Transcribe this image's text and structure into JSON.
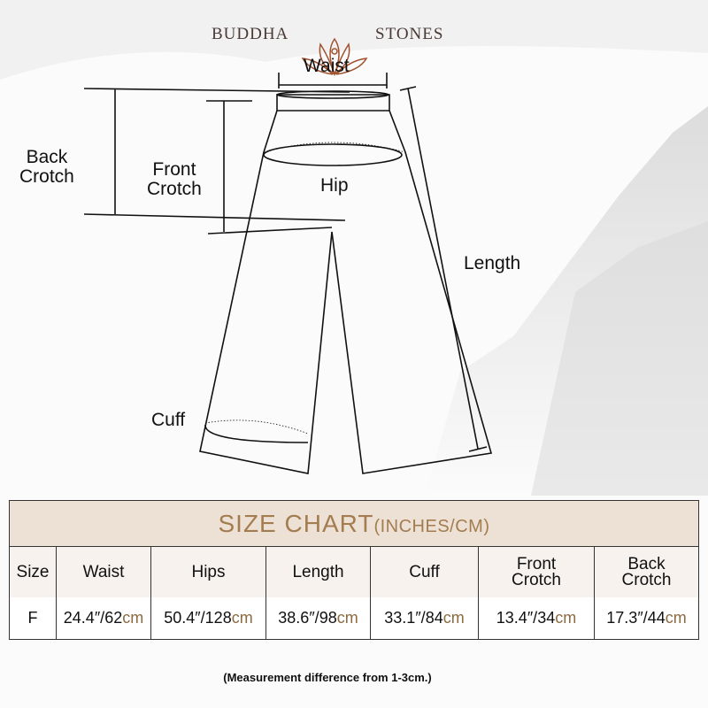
{
  "brand": {
    "left": "BUDDHA",
    "right": "STONES"
  },
  "diagram": {
    "waist": "Waist",
    "hip": "Hip",
    "back_crotch": [
      "Back",
      "Crotch"
    ],
    "front_crotch": [
      "Front",
      "Crotch"
    ],
    "length": "Length",
    "cuff": "Cuff"
  },
  "size_chart": {
    "title": "SIZE CHART",
    "unit": "(INCHES/CM)",
    "headers": [
      [
        "Size"
      ],
      [
        "Waist"
      ],
      [
        "Hips"
      ],
      [
        "Length"
      ],
      [
        "Cuff"
      ],
      [
        "Front",
        "Crotch"
      ],
      [
        "Back",
        "Crotch"
      ]
    ],
    "rows": [
      {
        "size": "F",
        "values": [
          {
            "in": "24.4″/62",
            "cm": "cm"
          },
          {
            "in": "50.4″/128",
            "cm": "cm"
          },
          {
            "in": "38.6″/98",
            "cm": "cm"
          },
          {
            "in": "33.1″/84",
            "cm": "cm"
          },
          {
            "in": "13.4″/34",
            "cm": "cm"
          },
          {
            "in": "17.3″/44",
            "cm": "cm"
          }
        ]
      }
    ]
  },
  "note": "(Measurement difference from 1-3cm.)",
  "colors": {
    "accent": "#a37c4f",
    "header_bg": "#ede1d6",
    "logo": "#a0522d"
  }
}
